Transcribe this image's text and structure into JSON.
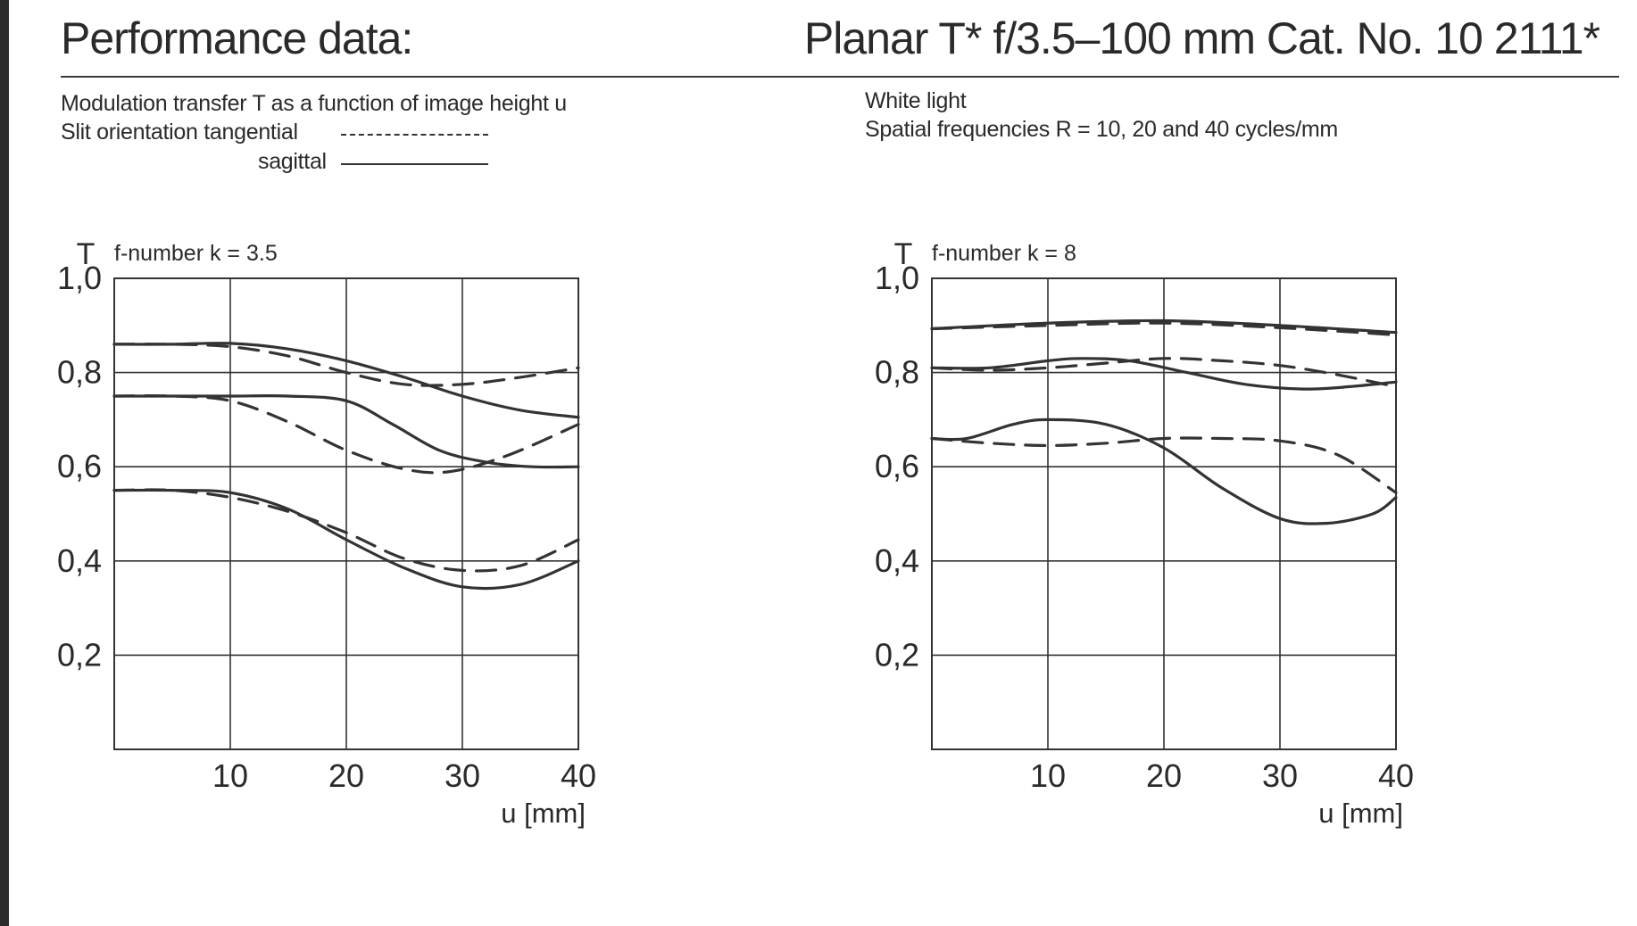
{
  "header": {
    "left_title": "Performance data:",
    "right_title": "Planar T* f/3.5–100 mm Cat. No. 10 2111*"
  },
  "description": {
    "line1": "Modulation transfer T as a function of image height u",
    "line2": "Slit orientation tangential",
    "line3": "sagittal",
    "line4": "White light",
    "line5": "Spatial frequencies R = 10, 20 and 40 cycles/mm"
  },
  "colors": {
    "ink": "#333333",
    "paper": "#ffffff"
  },
  "chart_data": [
    {
      "type": "line",
      "title": "f-number k = 3.5",
      "ylabel": "T",
      "xlabel": "u [mm]",
      "xlim": [
        0,
        40
      ],
      "ylim": [
        0,
        1.0
      ],
      "x_ticks": [
        10,
        20,
        30,
        40
      ],
      "x_tick_labels": [
        "10",
        "20",
        "30",
        "40"
      ],
      "y_ticks": [
        0.2,
        0.4,
        0.6,
        0.8,
        1.0
      ],
      "y_tick_labels": [
        "0,2",
        "0,4",
        "0,6",
        "0,8",
        "1,0"
      ],
      "grid": true,
      "series": [
        {
          "style": "solid",
          "points": [
            [
              0,
              0.86
            ],
            [
              5,
              0.86
            ],
            [
              10,
              0.862
            ],
            [
              15,
              0.85
            ],
            [
              20,
              0.825
            ],
            [
              25,
              0.79
            ],
            [
              30,
              0.75
            ],
            [
              35,
              0.72
            ],
            [
              40,
              0.705
            ]
          ]
        },
        {
          "style": "dashed",
          "points": [
            [
              0,
              0.86
            ],
            [
              5,
              0.86
            ],
            [
              10,
              0.855
            ],
            [
              15,
              0.835
            ],
            [
              20,
              0.8
            ],
            [
              25,
              0.775
            ],
            [
              30,
              0.775
            ],
            [
              35,
              0.79
            ],
            [
              40,
              0.81
            ]
          ]
        },
        {
          "style": "solid",
          "points": [
            [
              0,
              0.75
            ],
            [
              5,
              0.75
            ],
            [
              10,
              0.75
            ],
            [
              15,
              0.75
            ],
            [
              20,
              0.74
            ],
            [
              24,
              0.69
            ],
            [
              28,
              0.635
            ],
            [
              32,
              0.61
            ],
            [
              36,
              0.6
            ],
            [
              40,
              0.6
            ]
          ]
        },
        {
          "style": "dashed",
          "points": [
            [
              0,
              0.75
            ],
            [
              5,
              0.75
            ],
            [
              10,
              0.74
            ],
            [
              15,
              0.695
            ],
            [
              20,
              0.635
            ],
            [
              25,
              0.595
            ],
            [
              29,
              0.59
            ],
            [
              34,
              0.625
            ],
            [
              40,
              0.69
            ]
          ]
        },
        {
          "style": "solid",
          "points": [
            [
              0,
              0.55
            ],
            [
              5,
              0.55
            ],
            [
              10,
              0.545
            ],
            [
              15,
              0.51
            ],
            [
              20,
              0.445
            ],
            [
              25,
              0.385
            ],
            [
              30,
              0.345
            ],
            [
              35,
              0.35
            ],
            [
              40,
              0.4
            ]
          ]
        },
        {
          "style": "dashed",
          "points": [
            [
              0,
              0.55
            ],
            [
              5,
              0.55
            ],
            [
              10,
              0.535
            ],
            [
              15,
              0.505
            ],
            [
              20,
              0.46
            ],
            [
              25,
              0.405
            ],
            [
              30,
              0.38
            ],
            [
              35,
              0.39
            ],
            [
              40,
              0.445
            ]
          ]
        }
      ]
    },
    {
      "type": "line",
      "title": "f-number k = 8",
      "ylabel": "T",
      "xlabel": "u [mm]",
      "xlim": [
        0,
        40
      ],
      "ylim": [
        0,
        1.0
      ],
      "x_ticks": [
        10,
        20,
        30,
        40
      ],
      "x_tick_labels": [
        "10",
        "20",
        "30",
        "40"
      ],
      "y_ticks": [
        0.2,
        0.4,
        0.6,
        0.8,
        1.0
      ],
      "y_tick_labels": [
        "0,2",
        "0,4",
        "0,6",
        "0,8",
        "1,0"
      ],
      "grid": true,
      "series": [
        {
          "style": "solid",
          "points": [
            [
              0,
              0.893
            ],
            [
              10,
              0.905
            ],
            [
              20,
              0.91
            ],
            [
              30,
              0.9
            ],
            [
              40,
              0.885
            ]
          ]
        },
        {
          "style": "dashed",
          "points": [
            [
              0,
              0.893
            ],
            [
              10,
              0.9
            ],
            [
              20,
              0.905
            ],
            [
              30,
              0.895
            ],
            [
              40,
              0.88
            ]
          ]
        },
        {
          "style": "solid",
          "points": [
            [
              0,
              0.81
            ],
            [
              5,
              0.81
            ],
            [
              10,
              0.825
            ],
            [
              13,
              0.83
            ],
            [
              17,
              0.825
            ],
            [
              22,
              0.8
            ],
            [
              27,
              0.775
            ],
            [
              32,
              0.765
            ],
            [
              36,
              0.77
            ],
            [
              40,
              0.78
            ]
          ]
        },
        {
          "style": "dashed",
          "points": [
            [
              0,
              0.81
            ],
            [
              5,
              0.805
            ],
            [
              10,
              0.81
            ],
            [
              15,
              0.82
            ],
            [
              20,
              0.83
            ],
            [
              25,
              0.825
            ],
            [
              30,
              0.815
            ],
            [
              35,
              0.795
            ],
            [
              40,
              0.77
            ]
          ]
        },
        {
          "style": "solid",
          "points": [
            [
              0,
              0.66
            ],
            [
              3,
              0.66
            ],
            [
              7,
              0.69
            ],
            [
              10,
              0.7
            ],
            [
              15,
              0.69
            ],
            [
              20,
              0.64
            ],
            [
              25,
              0.555
            ],
            [
              30,
              0.49
            ],
            [
              34,
              0.48
            ],
            [
              38,
              0.5
            ],
            [
              40,
              0.535
            ]
          ]
        },
        {
          "style": "dashed",
          "points": [
            [
              0,
              0.66
            ],
            [
              5,
              0.65
            ],
            [
              10,
              0.645
            ],
            [
              15,
              0.65
            ],
            [
              20,
              0.66
            ],
            [
              25,
              0.66
            ],
            [
              30,
              0.655
            ],
            [
              35,
              0.625
            ],
            [
              40,
              0.545
            ]
          ]
        }
      ]
    }
  ]
}
